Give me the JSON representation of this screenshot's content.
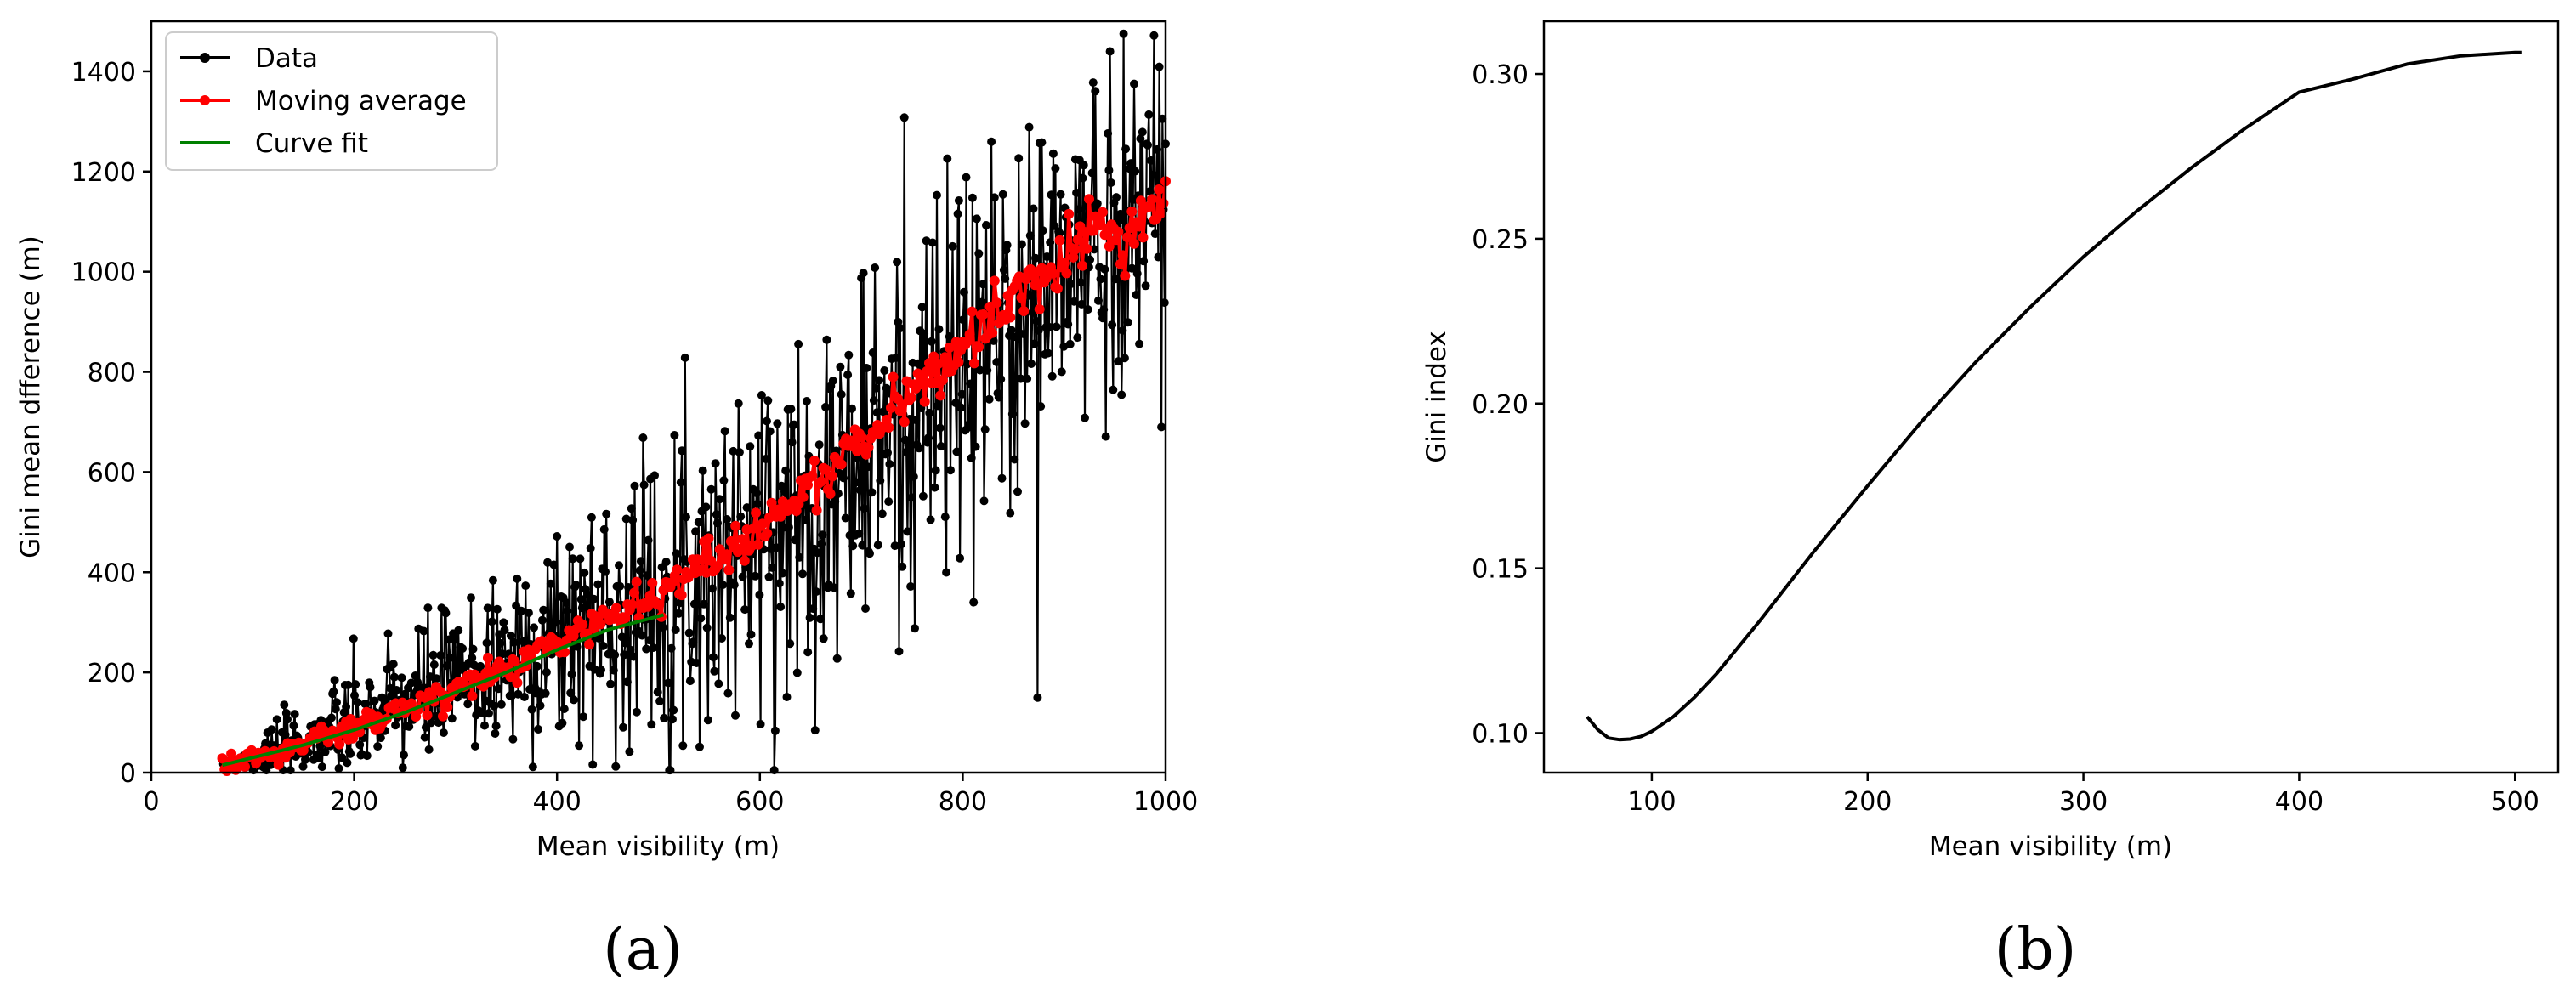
{
  "chart_data": [
    {
      "type": "line",
      "panel_label": "(a)",
      "xlabel": "Mean visibility (m)",
      "ylabel": "Gini mean dfference (m)",
      "xlim": [
        0,
        1000
      ],
      "ylim": [
        0,
        1500
      ],
      "xticks": [
        0,
        200,
        400,
        600,
        800,
        1000
      ],
      "yticks": [
        0,
        200,
        400,
        600,
        800,
        1000,
        1200,
        1400
      ],
      "legend_position": "upper-left",
      "series": [
        {
          "name": "Data",
          "color": "#000000",
          "marker": "dot",
          "trend": {
            "x": [
              70,
              100,
              200,
              300,
              400,
              500,
              600,
              700,
              800,
              900,
              1000
            ],
            "y": [
              15,
              30,
              95,
              180,
              270,
              360,
              470,
              620,
              800,
              1000,
              1180
            ]
          },
          "spread": {
            "x": [
              70,
              100,
              200,
              300,
              400,
              500,
              600,
              700,
              800,
              900,
              1000
            ],
            "y": [
              5,
              25,
              70,
              110,
              150,
              180,
              220,
              250,
              270,
              260,
              200
            ]
          },
          "x_range": [
            70,
            1000
          ],
          "y_max": 1475
        },
        {
          "name": "Moving average",
          "color": "#ff0000",
          "marker": "dot",
          "x": [
            70,
            100,
            150,
            200,
            250,
            300,
            350,
            400,
            450,
            500,
            550,
            600,
            650,
            700,
            750,
            800,
            850,
            900,
            930,
            960,
            1000
          ],
          "y": [
            15,
            30,
            55,
            90,
            125,
            160,
            210,
            260,
            310,
            360,
            420,
            490,
            570,
            660,
            760,
            850,
            940,
            1030,
            1110,
            1060,
            1170
          ]
        },
        {
          "name": "Curve fit",
          "color": "#008000",
          "marker": "none",
          "x": [
            70,
            100,
            150,
            200,
            250,
            300,
            350,
            400,
            450,
            505
          ],
          "y": [
            15,
            30,
            55,
            85,
            120,
            160,
            200,
            245,
            285,
            315
          ]
        }
      ]
    },
    {
      "type": "line",
      "panel_label": "(b)",
      "xlabel": "Mean visibility (m)",
      "ylabel": "Gini index",
      "xlim": [
        50,
        520
      ],
      "ylim": [
        0.088,
        0.316
      ],
      "xticks": [
        100,
        200,
        300,
        400,
        500
      ],
      "yticks": [
        0.1,
        0.15,
        0.2,
        0.25,
        0.3
      ],
      "ytick_labels": [
        "0.10",
        "0.15",
        "0.20",
        "0.25",
        "0.30"
      ],
      "series": [
        {
          "color": "#000000",
          "x": [
            70,
            75,
            80,
            85,
            90,
            95,
            100,
            110,
            120,
            130,
            140,
            150,
            175,
            200,
            225,
            250,
            275,
            300,
            325,
            350,
            375,
            400,
            425,
            450,
            475,
            500,
            503
          ],
          "y": [
            0.105,
            0.101,
            0.0985,
            0.098,
            0.0982,
            0.099,
            0.1005,
            0.105,
            0.111,
            0.118,
            0.126,
            0.134,
            0.155,
            0.175,
            0.1945,
            0.2125,
            0.229,
            0.2445,
            0.2585,
            0.2715,
            0.2835,
            0.2945,
            0.2985,
            0.303,
            0.3055,
            0.3065,
            0.3065
          ]
        }
      ]
    }
  ]
}
